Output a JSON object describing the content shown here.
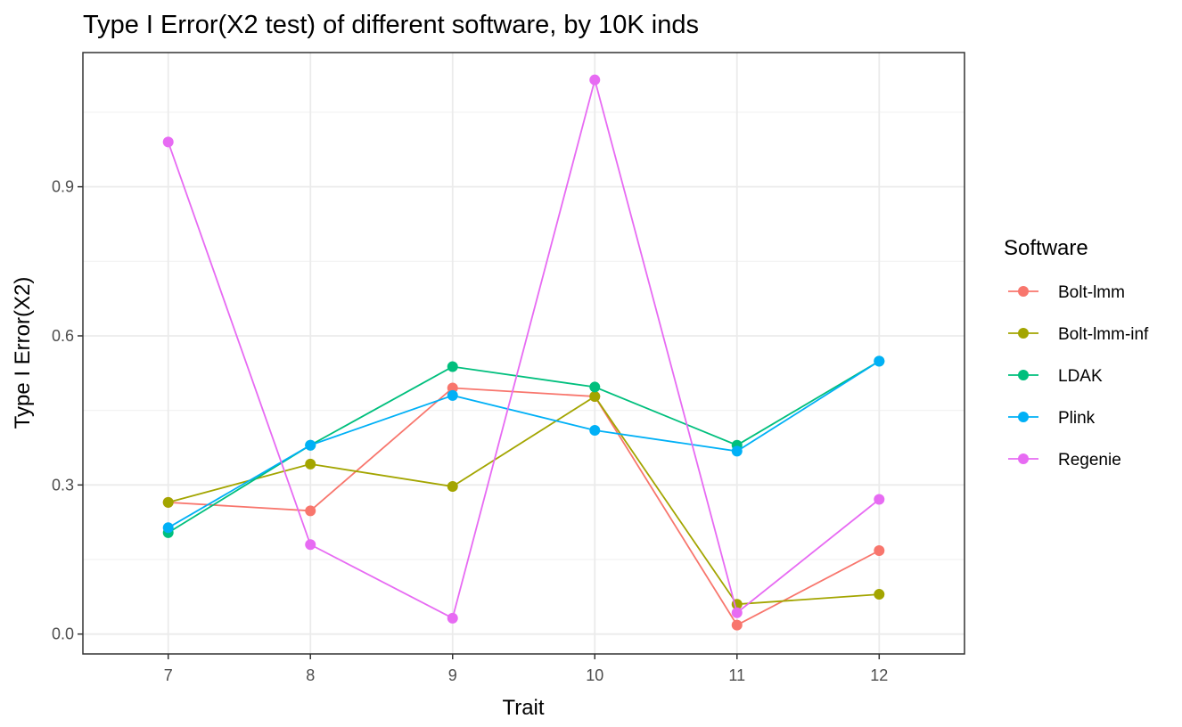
{
  "chart_data": {
    "type": "line",
    "title": "Type I Error(X2 test) of different software, by 10K inds",
    "xlabel": "Trait",
    "ylabel": "Type I Error(X2)",
    "x": [
      7,
      8,
      9,
      10,
      11,
      12
    ],
    "x_ticks": [
      "7",
      "8",
      "9",
      "10",
      "11",
      "12"
    ],
    "y_ticks": [
      "0.0",
      "0.3",
      "0.6",
      "0.9"
    ],
    "y_tick_values": [
      0.0,
      0.3,
      0.6,
      0.9
    ],
    "xlim": [
      6.4,
      12.6
    ],
    "ylim": [
      -0.04,
      1.17
    ],
    "grid": true,
    "legend": {
      "title": "Software",
      "position": "right"
    },
    "series": [
      {
        "name": "Bolt-lmm",
        "color": "#F8766D",
        "values": [
          0.265,
          0.248,
          0.495,
          0.478,
          0.018,
          0.168
        ]
      },
      {
        "name": "Bolt-lmm-inf",
        "color": "#A3A500",
        "values": [
          0.265,
          0.342,
          0.297,
          0.478,
          0.06,
          0.08
        ]
      },
      {
        "name": "LDAK",
        "color": "#00BF7D",
        "values": [
          0.204,
          0.38,
          0.538,
          0.497,
          0.38,
          0.549
        ]
      },
      {
        "name": "Plink",
        "color": "#00B0F6",
        "values": [
          0.214,
          0.38,
          0.48,
          0.41,
          0.368,
          0.549
        ]
      },
      {
        "name": "Regenie",
        "color": "#E76BF3",
        "values": [
          0.99,
          0.18,
          0.032,
          1.115,
          0.043,
          0.271
        ]
      }
    ]
  }
}
